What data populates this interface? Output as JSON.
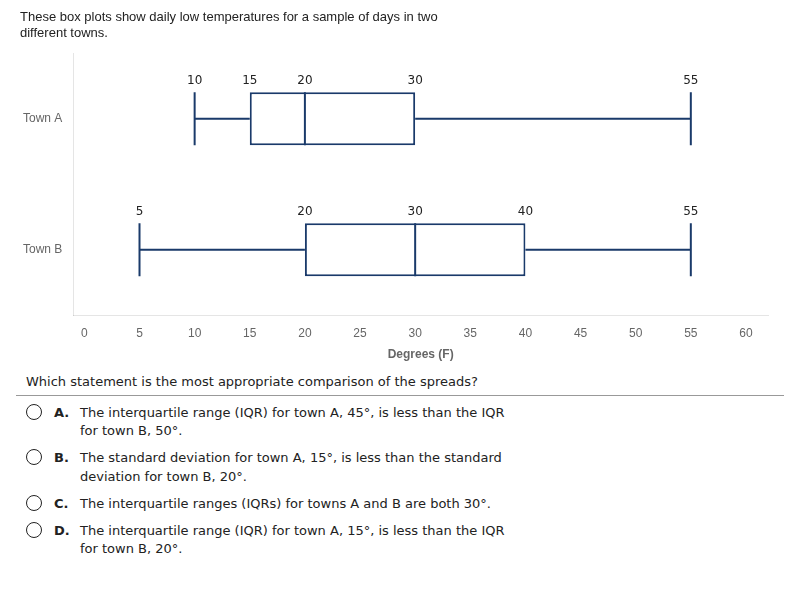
{
  "chart_data": {
    "type": "boxplot",
    "title": [
      "These box plots show daily low temperatures for a sample of days in two",
      "different towns."
    ],
    "subtitle": "Which statement is the most appropriate comparison of the spreads?",
    "categories": [
      "Town A",
      "Town B"
    ],
    "values": [
      {
        "min": 10,
        "q1": 15,
        "median": 20,
        "q3": 30,
        "max": 55
      },
      {
        "min": 5,
        "q1": 20,
        "median": 30,
        "q3": 40,
        "max": 55
      }
    ],
    "color": "#1a3a6a",
    "orientation": "horizontal",
    "xlabel": "Degrees (F)",
    "xlim": [
      -1,
      62
    ],
    "xticks": [
      0,
      5,
      10,
      15,
      20,
      25,
      30,
      35,
      40,
      45,
      50,
      55,
      60
    ],
    "grid": false,
    "data_labels": true,
    "annotations": [
      {
        "label": "A.",
        "text": "The interquartile range (IQR) for town A, 45°, is less than the IQR\nfor town B, 50°."
      },
      {
        "label": "B.",
        "text": "The standard deviation for town A, 15°, is less than the standard\ndeviation for town B, 20°."
      },
      {
        "label": "C.",
        "text": "The interquartile ranges (IQRs) for towns A and B are both 30°."
      },
      {
        "label": "D.",
        "text": "The interquartile range (IQR) for town A, 15°, is less than the IQR\nfor town B, 20°."
      }
    ]
  }
}
